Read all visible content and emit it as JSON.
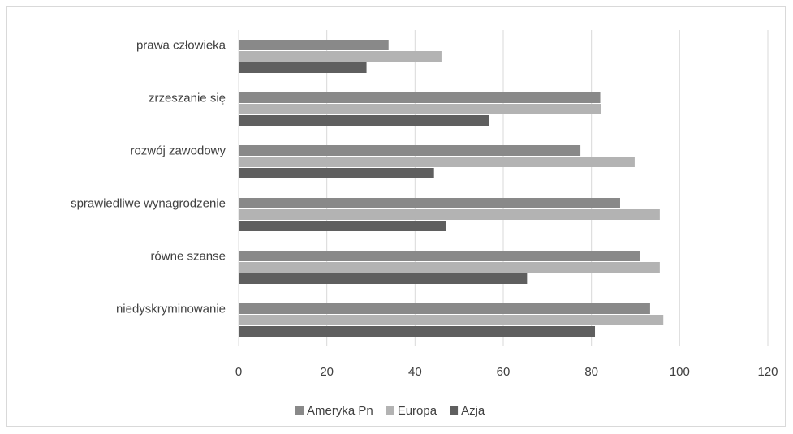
{
  "chart_data": {
    "type": "bar",
    "orientation": "horizontal",
    "categories": [
      "prawa człowieka",
      "zrzeszanie się",
      "rozwój zawodowy",
      "sprawiedliwe wynagrodzenie",
      "równe szanse",
      "niedyskryminowanie"
    ],
    "series": [
      {
        "name": "Ameryka Pn",
        "color": "#898989",
        "values": [
          34,
          82,
          77.5,
          86.5,
          91,
          93.3
        ]
      },
      {
        "name": "Europa",
        "color": "#b3b3b3",
        "values": [
          46,
          82.2,
          89.8,
          95.5,
          95.5,
          96.3
        ]
      },
      {
        "name": "Azja",
        "color": "#5f5f5f",
        "values": [
          29,
          56.8,
          44.3,
          47,
          65.4,
          80.8
        ]
      }
    ],
    "xlim": [
      0,
      120
    ],
    "xticks": [
      "0",
      "20",
      "40",
      "60",
      "80",
      "100",
      "120"
    ],
    "grid": true,
    "legend_position": "bottom"
  }
}
